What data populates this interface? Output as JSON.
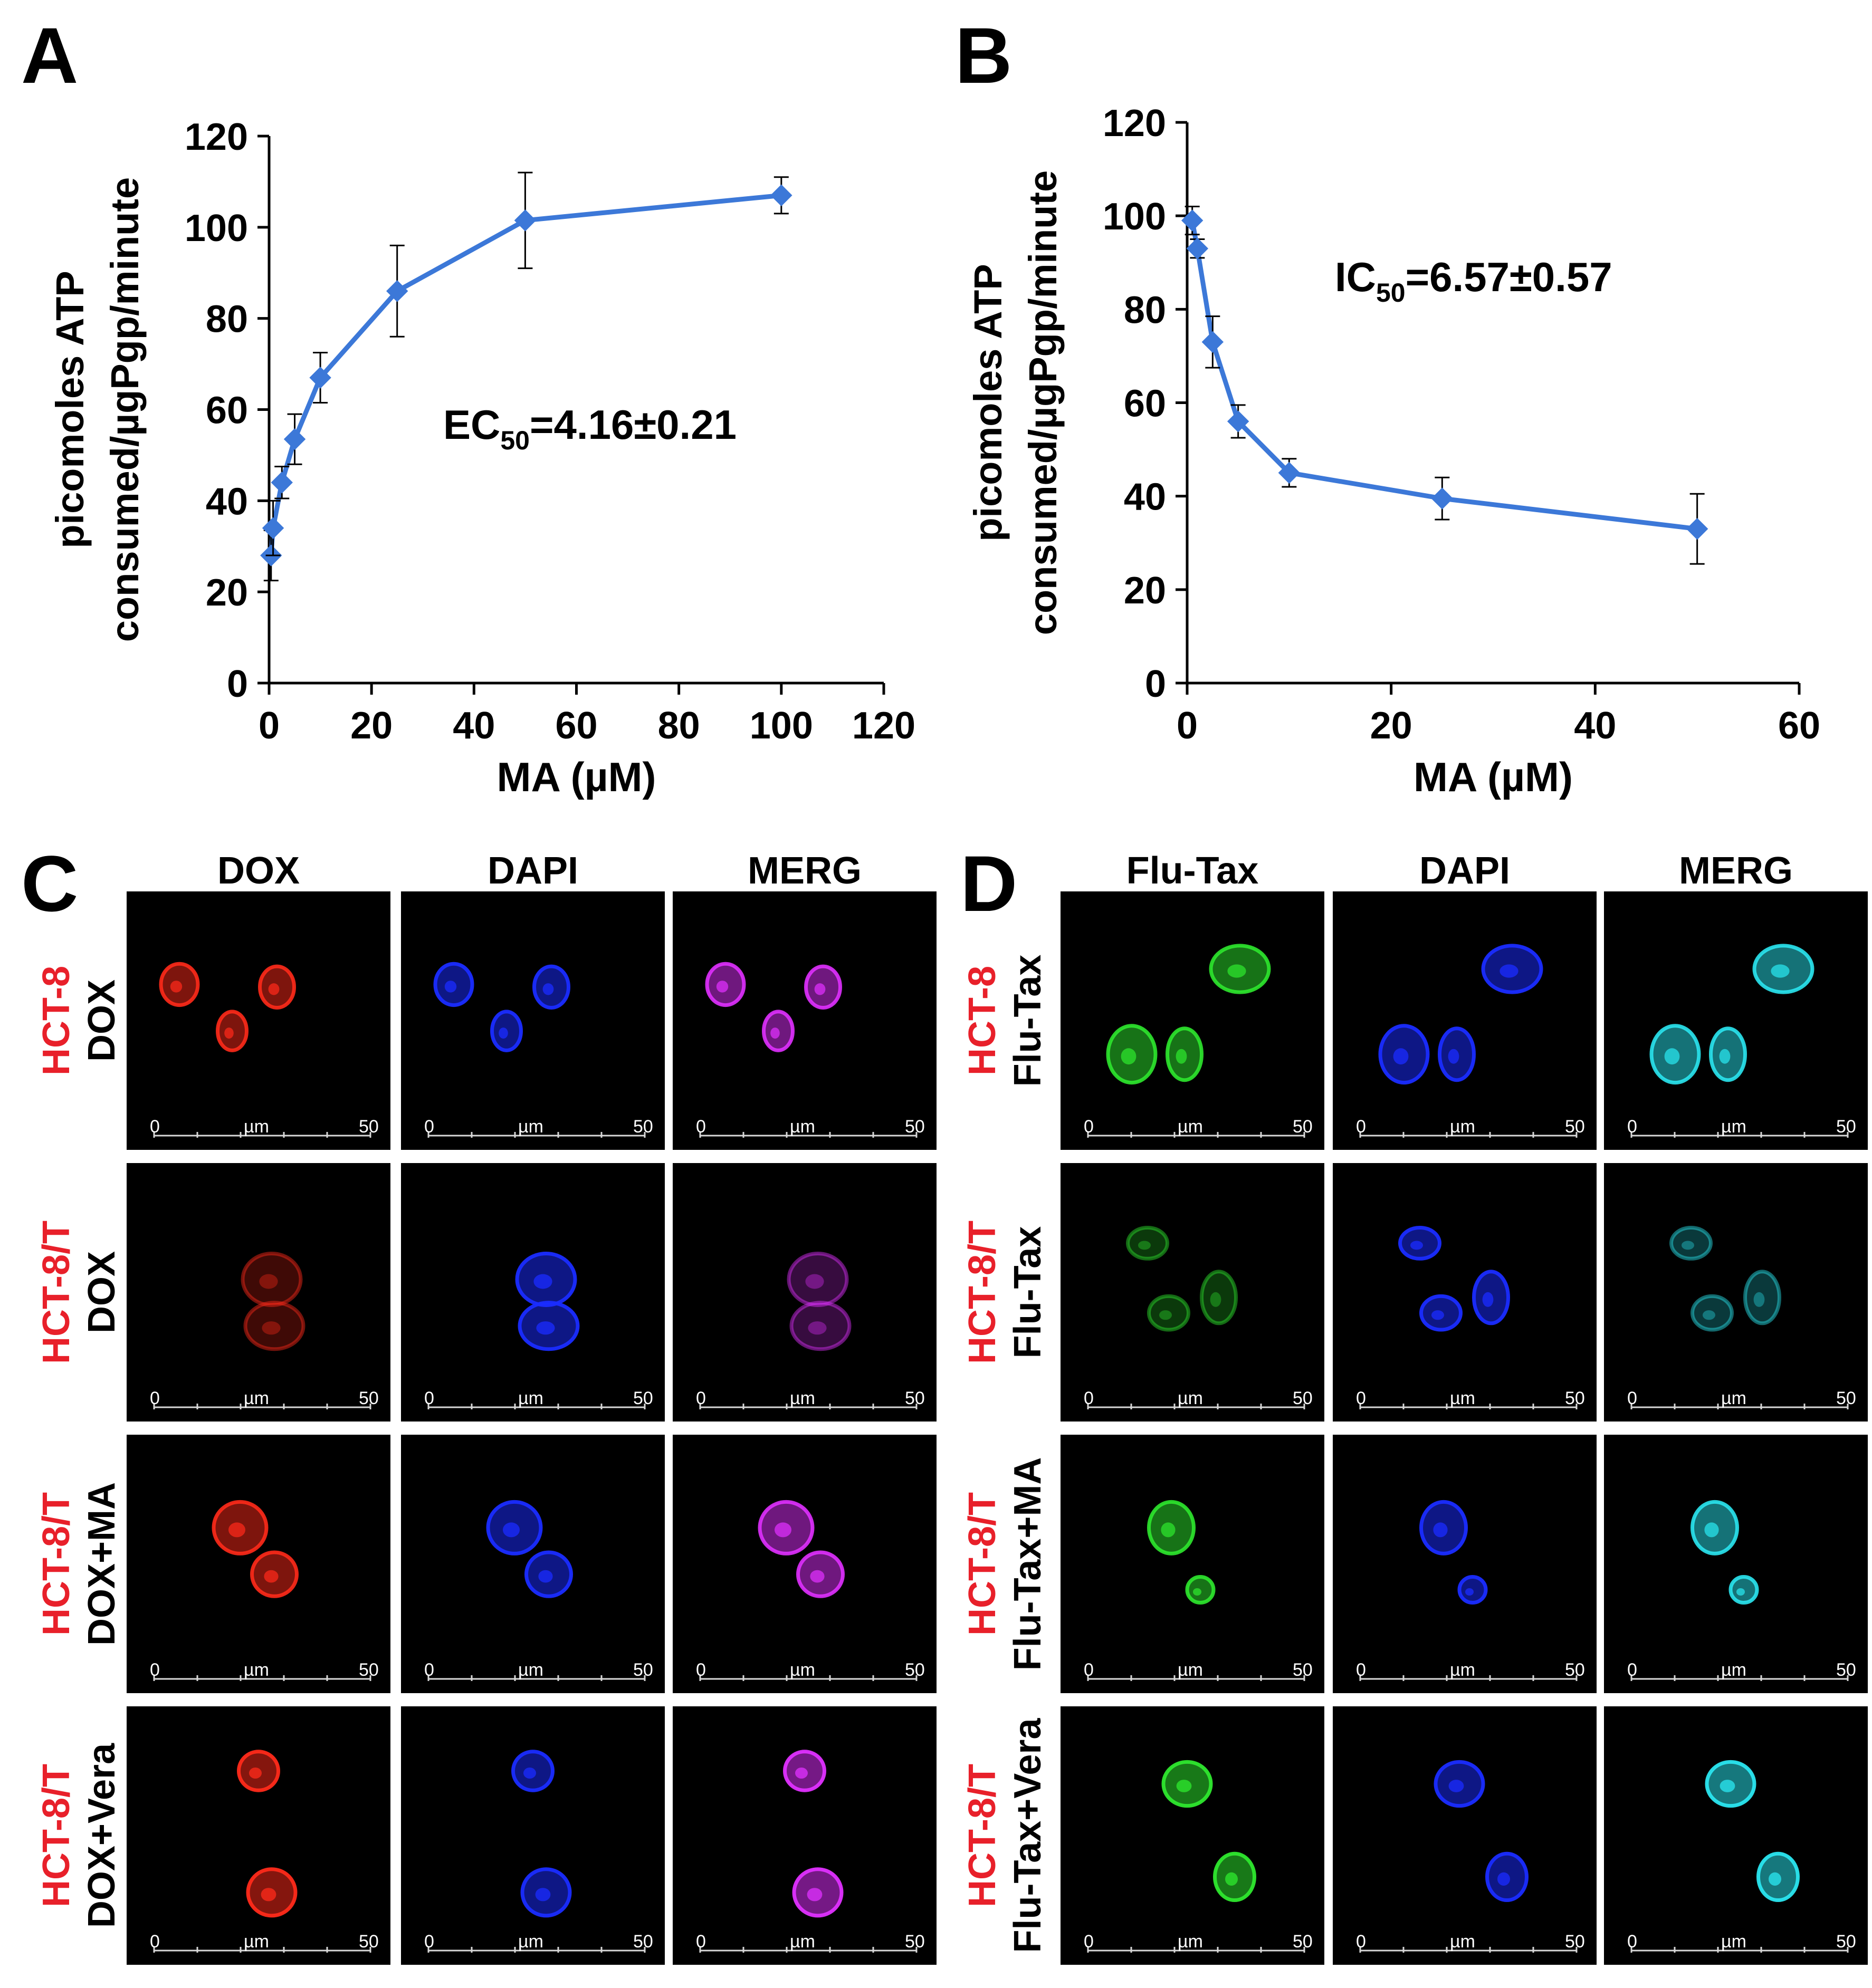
{
  "panels": {
    "A": "A",
    "B": "B",
    "C": "C",
    "D": "D"
  },
  "chart_data": [
    {
      "type": "line",
      "panel": "A",
      "xlabel": "MA (µM)",
      "ylabel_line1": "picomoles ATP",
      "ylabel_line2": "consumed/µgPgp/minute",
      "xlim": [
        0,
        120
      ],
      "ylim": [
        0,
        120
      ],
      "xticks": [
        0,
        20,
        40,
        60,
        80,
        100,
        120
      ],
      "yticks": [
        0,
        20,
        40,
        60,
        80,
        100,
        120
      ],
      "color": "#3c78d8",
      "annotation_main": "EC",
      "annotation_sub": "50",
      "annotation_rest": "=4.16±0.21",
      "series": [
        {
          "x": [
            0.39,
            0.78,
            2.5,
            5,
            10,
            25,
            50,
            100
          ],
          "y": [
            28,
            34,
            44,
            53.5,
            67,
            86,
            101.5,
            107
          ],
          "err": [
            5.5,
            6,
            3.5,
            5.5,
            5.5,
            10,
            10.5,
            4
          ]
        }
      ]
    },
    {
      "type": "line",
      "panel": "B",
      "xlabel": "MA (µM)",
      "ylabel_line1": "picomoles ATP",
      "ylabel_line2": "consumed/µgPgp/minute",
      "xlim": [
        0,
        60
      ],
      "ylim": [
        0,
        120
      ],
      "xticks": [
        0,
        20,
        40,
        60
      ],
      "yticks": [
        0,
        20,
        40,
        60,
        80,
        100,
        120
      ],
      "color": "#3c78d8",
      "annotation_main": "IC",
      "annotation_sub": "50",
      "annotation_rest": "=6.57±0.57",
      "series": [
        {
          "x": [
            0.5,
            1,
            2.5,
            5,
            10,
            25,
            50
          ],
          "y": [
            99,
            93,
            73,
            56,
            45,
            39.5,
            33
          ],
          "err": [
            3,
            2,
            5.5,
            3.5,
            3,
            4.5,
            7.5
          ]
        }
      ]
    }
  ],
  "microscopy": {
    "C": {
      "columns": [
        "DOX",
        "DAPI",
        "MERG"
      ],
      "rows": [
        {
          "line1": "HCT-8",
          "line2": "DOX"
        },
        {
          "line1": "HCT-8/T",
          "line2": "DOX"
        },
        {
          "line1": "HCT-8/T",
          "line2": "DOX+MA"
        },
        {
          "line1": "HCT-8/T",
          "line2": "DOX+Vera"
        }
      ],
      "channel_colors": [
        "#ff2a1a",
        "#1a2cff",
        "#e030ff"
      ]
    },
    "D": {
      "columns": [
        "Flu-Tax",
        "DAPI",
        "MERG"
      ],
      "rows": [
        {
          "line1": "HCT-8",
          "line2": "Flu-Tax"
        },
        {
          "line1": "HCT-8/T",
          "line2": "Flu-Tax"
        },
        {
          "line1": "HCT-8/T",
          "line2": "Flu-Tax+MA"
        },
        {
          "line1": "HCT-8/T",
          "line2": "Flu-Tax+Vera"
        }
      ],
      "channel_colors": [
        "#2ee82e",
        "#1a2cff",
        "#2ae6f0"
      ]
    },
    "scale_bar": {
      "start": "0",
      "unit": "µm",
      "end": "50"
    }
  }
}
